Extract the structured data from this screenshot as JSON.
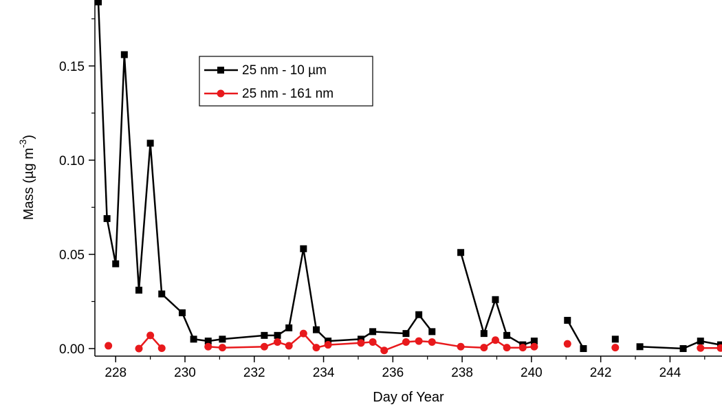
{
  "chart_data": {
    "type": "line",
    "title": "",
    "xlabel": "Day of Year",
    "ylabel_main": "Mass (µg m",
    "ylabel_sup": "-3",
    "ylabel_close": ")",
    "xlim": [
      227.4,
      245.5
    ],
    "ylim": [
      -0.004,
      0.185
    ],
    "xticks": [
      228,
      230,
      232,
      234,
      236,
      238,
      240,
      242,
      244
    ],
    "yticks": [
      0.0,
      0.05,
      0.1,
      0.15
    ],
    "ytick_labels": [
      "0.00",
      "0.05",
      "0.10",
      "0.15"
    ],
    "grid": false,
    "legend_position": "upper-center",
    "series": [
      {
        "name": "25 nm - 10 µm",
        "color": "#000000",
        "marker": "square",
        "x": [
          227.5,
          227.75,
          228.0,
          228.25,
          228.67,
          229.0,
          229.33,
          229.92,
          230.25,
          230.67,
          231.08,
          232.29,
          232.67,
          233.0,
          233.42,
          233.79,
          234.13,
          235.08,
          235.42,
          236.38,
          236.75,
          237.13,
          237.96,
          238.63,
          238.96,
          239.29,
          239.75,
          240.08,
          241.04,
          241.5,
          242.42,
          243.13,
          244.38,
          244.88,
          245.46
        ],
        "y": [
          0.184,
          0.069,
          0.045,
          0.156,
          0.031,
          0.109,
          0.029,
          0.019,
          0.005,
          0.004,
          0.005,
          0.007,
          0.007,
          0.011,
          0.053,
          0.01,
          0.004,
          0.005,
          0.009,
          0.008,
          0.018,
          0.009,
          0.051,
          0.008,
          0.026,
          0.007,
          0.002,
          0.004,
          0.015,
          0.0,
          0.005,
          0.001,
          0.0,
          0.004,
          0.002
        ],
        "segments": [
          [
            0,
            22
          ],
          [
            22,
            28
          ],
          [
            28,
            30
          ],
          [
            30,
            31
          ],
          [
            31,
            35
          ]
        ]
      },
      {
        "name": "25 nm - 161 nm",
        "color": "#e8191c",
        "marker": "circle",
        "x": [
          227.79,
          228.67,
          229.0,
          229.33,
          230.67,
          231.08,
          232.29,
          232.67,
          233.0,
          233.42,
          233.79,
          234.13,
          235.08,
          235.42,
          235.75,
          236.38,
          236.75,
          237.13,
          237.96,
          238.63,
          238.96,
          239.29,
          239.75,
          240.08,
          241.04,
          242.42,
          244.88,
          245.46
        ],
        "y": [
          0.0015,
          0.0,
          0.007,
          0.0002,
          0.001,
          0.0005,
          0.001,
          0.0035,
          0.0015,
          0.008,
          0.0005,
          0.002,
          0.003,
          0.0035,
          -0.001,
          0.0035,
          0.004,
          0.0035,
          0.001,
          0.0005,
          0.0045,
          0.0005,
          0.0005,
          0.001,
          0.0025,
          0.0005,
          0.0003,
          0.0003
        ],
        "segments": [
          [
            0,
            1
          ],
          [
            1,
            4
          ],
          [
            4,
            24
          ],
          [
            24,
            25
          ],
          [
            25,
            26
          ],
          [
            26,
            28
          ]
        ]
      }
    ]
  }
}
